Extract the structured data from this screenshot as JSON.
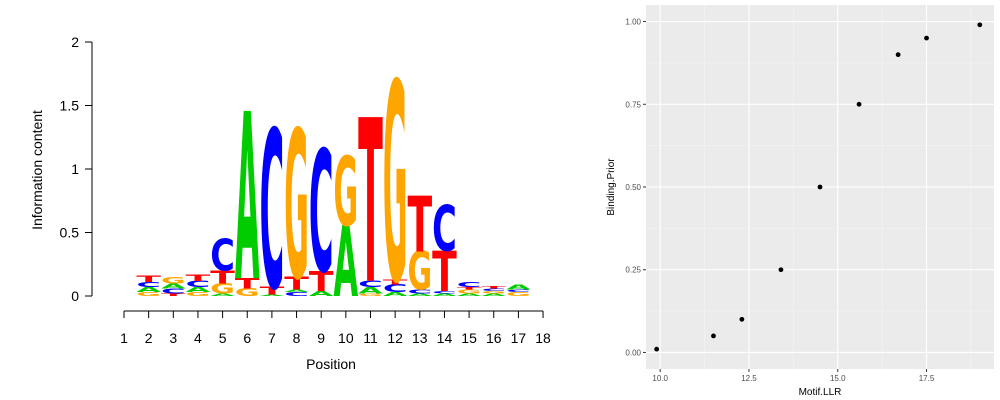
{
  "chart_data": [
    {
      "type": "sequence-logo",
      "xlabel": "Position",
      "ylabel": "Information content",
      "ylim": [
        0,
        2
      ],
      "yticks": [
        "0",
        "0.5",
        "1",
        "1.5",
        "2"
      ],
      "xticks": [
        "1",
        "2",
        "3",
        "4",
        "5",
        "6",
        "7",
        "8",
        "9",
        "10",
        "11",
        "12",
        "13",
        "14",
        "15",
        "16",
        "17",
        "18"
      ],
      "colors": {
        "A": "#00cc00",
        "C": "#0000ff",
        "G": "#ffa500",
        "T": "#ff0000"
      },
      "positions": [
        {
          "pos": 2,
          "stack": [
            [
              "G",
              0.03
            ],
            [
              "A",
              0.04
            ],
            [
              "C",
              0.04
            ],
            [
              "T",
              0.05
            ]
          ]
        },
        {
          "pos": 3,
          "stack": [
            [
              "T",
              0.02
            ],
            [
              "C",
              0.04
            ],
            [
              "A",
              0.04
            ],
            [
              "G",
              0.05
            ]
          ]
        },
        {
          "pos": 4,
          "stack": [
            [
              "G",
              0.03
            ],
            [
              "A",
              0.04
            ],
            [
              "C",
              0.05
            ],
            [
              "T",
              0.05
            ]
          ]
        },
        {
          "pos": 5,
          "stack": [
            [
              "A",
              0.02
            ],
            [
              "G",
              0.08
            ],
            [
              "T",
              0.1
            ],
            [
              "C",
              0.25
            ]
          ]
        },
        {
          "pos": 6,
          "stack": [
            [
              "G",
              0.06
            ],
            [
              "T",
              0.08
            ],
            [
              "A",
              1.32
            ]
          ]
        },
        {
          "pos": 7,
          "stack": [
            [
              "A",
              0.01
            ],
            [
              "T",
              0.06
            ],
            [
              "C",
              1.25
            ]
          ]
        },
        {
          "pos": 8,
          "stack": [
            [
              "C",
              0.03
            ],
            [
              "A",
              0.02
            ],
            [
              "T",
              0.1
            ],
            [
              "G",
              1.17
            ]
          ]
        },
        {
          "pos": 9,
          "stack": [
            [
              "A",
              0.04
            ],
            [
              "T",
              0.16
            ],
            [
              "C",
              0.96
            ]
          ]
        },
        {
          "pos": 10,
          "stack": [
            [
              "A",
              0.56
            ],
            [
              "G",
              0.55
            ]
          ]
        },
        {
          "pos": 11,
          "stack": [
            [
              "G",
              0.02
            ],
            [
              "A",
              0.05
            ],
            [
              "C",
              0.05
            ],
            [
              "T",
              1.29
            ]
          ]
        },
        {
          "pos": 12,
          "stack": [
            [
              "A",
              0.03
            ],
            [
              "C",
              0.06
            ],
            [
              "T",
              0.04
            ],
            [
              "G",
              1.57
            ]
          ]
        },
        {
          "pos": 13,
          "stack": [
            [
              "A",
              0.02
            ],
            [
              "C",
              0.03
            ],
            [
              "G",
              0.3
            ],
            [
              "T",
              0.44
            ]
          ]
        },
        {
          "pos": 14,
          "stack": [
            [
              "A",
              0.02
            ],
            [
              "C",
              0.02
            ],
            [
              "T",
              0.32
            ],
            [
              "C",
              0.36
            ]
          ]
        },
        {
          "pos": 15,
          "stack": [
            [
              "A",
              0.02
            ],
            [
              "G",
              0.03
            ],
            [
              "T",
              0.02
            ],
            [
              "C",
              0.04
            ]
          ]
        },
        {
          "pos": 16,
          "stack": [
            [
              "A",
              0.02
            ],
            [
              "G",
              0.02
            ],
            [
              "C",
              0.02
            ],
            [
              "T",
              0.02
            ]
          ]
        },
        {
          "pos": 17,
          "stack": [
            [
              "G",
              0.03
            ],
            [
              "C",
              0.02
            ],
            [
              "A",
              0.04
            ]
          ]
        }
      ]
    },
    {
      "type": "scatter",
      "xlabel": "Motif.LLR",
      "ylabel": "Binding.Prior",
      "xlim": [
        9.6,
        19.4
      ],
      "ylim": [
        -0.05,
        1.05
      ],
      "xticks": [
        10.0,
        12.5,
        15.0,
        17.5
      ],
      "xtick_labels": [
        "10.0",
        "12.5",
        "15.0",
        "17.5"
      ],
      "yticks": [
        0.0,
        0.25,
        0.5,
        0.75,
        1.0
      ],
      "ytick_labels": [
        "0.00",
        "0.25",
        "0.50",
        "0.75",
        "1.00"
      ],
      "grid": true,
      "points": [
        {
          "x": 9.9,
          "y": 0.01
        },
        {
          "x": 11.5,
          "y": 0.05
        },
        {
          "x": 12.3,
          "y": 0.1
        },
        {
          "x": 13.4,
          "y": 0.25
        },
        {
          "x": 14.5,
          "y": 0.5
        },
        {
          "x": 15.6,
          "y": 0.75
        },
        {
          "x": 16.7,
          "y": 0.9
        },
        {
          "x": 17.5,
          "y": 0.95
        },
        {
          "x": 19.0,
          "y": 0.99
        }
      ]
    }
  ]
}
